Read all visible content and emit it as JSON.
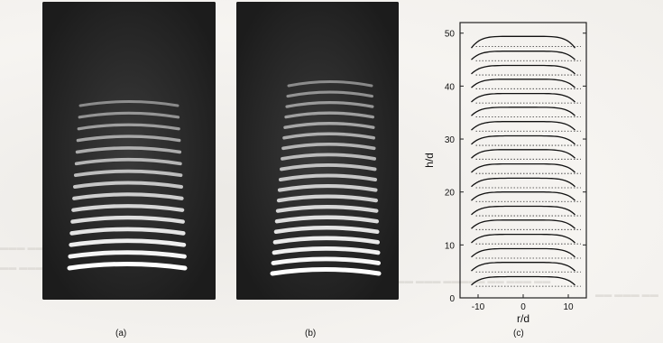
{
  "panels": {
    "a": {
      "label": "(a)"
    },
    "b": {
      "label": "(b)"
    },
    "c": {
      "label": "(c)"
    }
  },
  "photo_a": {
    "fringe_count": 15
  },
  "photo_b": {
    "fringe_count": 19
  },
  "chart_data": {
    "type": "line",
    "title": "",
    "xlabel": "r/d",
    "ylabel": "h/d",
    "xlim": [
      -14,
      14
    ],
    "ylim": [
      0,
      52
    ],
    "xticks": [
      -10,
      0,
      10
    ],
    "yticks": [
      0,
      10,
      20,
      30,
      40,
      50
    ],
    "grid": false,
    "baselines": [
      2.2,
      4.9,
      7.5,
      10.2,
      12.9,
      15.5,
      18.2,
      20.8,
      23.5,
      26.2,
      28.8,
      31.5,
      34.2,
      36.8,
      39.5,
      42.1,
      44.8,
      47.5
    ],
    "profiles": [
      {
        "x_min": -11.5,
        "x_max": 11.5,
        "y_center": 4.0,
        "y_edge": 2.4
      },
      {
        "x_min": -11.5,
        "x_max": 11.5,
        "y_center": 6.7,
        "y_edge": 5.1
      },
      {
        "x_min": -11.5,
        "x_max": 11.5,
        "y_center": 9.3,
        "y_edge": 7.7
      },
      {
        "x_min": -11.5,
        "x_max": 11.5,
        "y_center": 12.0,
        "y_edge": 10.4
      },
      {
        "x_min": -11.5,
        "x_max": 11.5,
        "y_center": 14.7,
        "y_edge": 13.1
      },
      {
        "x_min": -11.5,
        "x_max": 11.5,
        "y_center": 17.3,
        "y_edge": 15.7
      },
      {
        "x_min": -11.5,
        "x_max": 11.5,
        "y_center": 20.0,
        "y_edge": 18.4
      },
      {
        "x_min": -11.5,
        "x_max": 11.5,
        "y_center": 22.6,
        "y_edge": 21.0
      },
      {
        "x_min": -11.5,
        "x_max": 11.5,
        "y_center": 25.3,
        "y_edge": 23.7
      },
      {
        "x_min": -11.5,
        "x_max": 11.5,
        "y_center": 28.0,
        "y_edge": 26.4
      },
      {
        "x_min": -11.5,
        "x_max": 11.5,
        "y_center": 30.6,
        "y_edge": 29.0
      },
      {
        "x_min": -11.5,
        "x_max": 11.5,
        "y_center": 33.3,
        "y_edge": 31.7
      },
      {
        "x_min": -11.5,
        "x_max": 11.5,
        "y_center": 36.0,
        "y_edge": 34.4
      },
      {
        "x_min": -11.5,
        "x_max": 11.5,
        "y_center": 38.6,
        "y_edge": 37.0
      },
      {
        "x_min": -11.5,
        "x_max": 11.5,
        "y_center": 41.3,
        "y_edge": 39.7
      },
      {
        "x_min": -11.5,
        "x_max": 11.5,
        "y_center": 43.9,
        "y_edge": 42.3
      },
      {
        "x_min": -11.5,
        "x_max": 11.5,
        "y_center": 46.6,
        "y_edge": 45.0
      },
      {
        "x_min": -11.5,
        "x_max": 11.5,
        "y_center": 49.4,
        "y_edge": 47.2
      }
    ]
  }
}
